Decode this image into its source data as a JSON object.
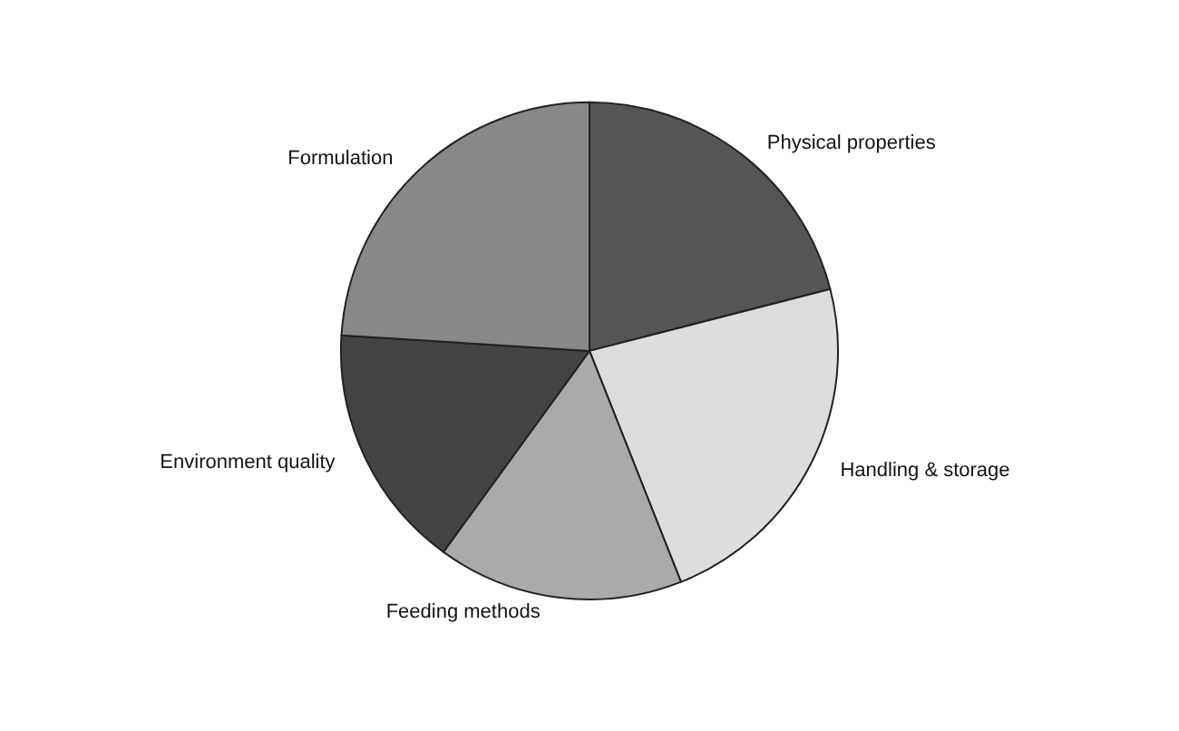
{
  "chart_data": {
    "type": "pie",
    "categories": [
      "Physical properties",
      "Handling & storage",
      "Feeding methods",
      "Environment quality",
      "Formulation"
    ],
    "values": [
      21,
      23,
      16,
      16,
      24
    ],
    "colors": [
      "#555555",
      "#dddddd",
      "#aaaaaa",
      "#444444",
      "#888888"
    ],
    "legend": false
  }
}
